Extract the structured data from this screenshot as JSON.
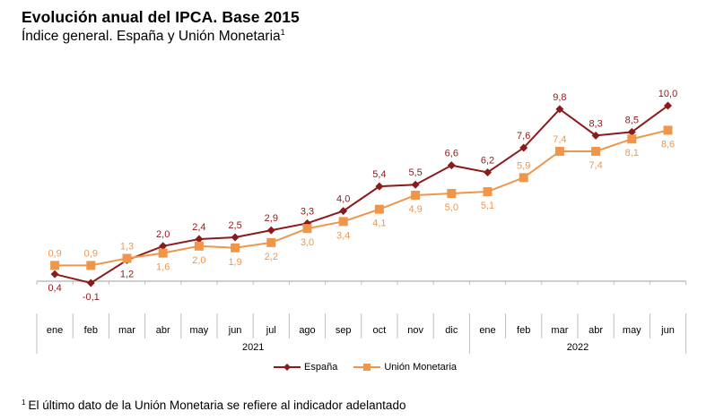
{
  "header": {
    "title": "Evolución anual del IPCA. Base 2015",
    "subtitle": "Índice general. España y Unión Monetaria",
    "subtitle_sup": "1"
  },
  "footnote": {
    "sup": "1",
    "text": "El último dato de la Unión Monetaria se refiere al indicador adelantado"
  },
  "chart_data": {
    "type": "line",
    "title": "Evolución anual del IPCA. Base 2015",
    "subtitle": "Índice general. España y Unión Monetaria",
    "xlabel": "",
    "ylabel": "",
    "categories": [
      "ene",
      "feb",
      "mar",
      "abr",
      "may",
      "jun",
      "jul",
      "ago",
      "sep",
      "oct",
      "nov",
      "dic",
      "ene",
      "feb",
      "mar",
      "abr",
      "may",
      "jun"
    ],
    "groups": [
      {
        "label": "2021",
        "start": 0,
        "end": 11
      },
      {
        "label": "2022",
        "start": 12,
        "end": 17
      }
    ],
    "ylim": [
      -0.1,
      10.0
    ],
    "grid": false,
    "legend": "bottom-center",
    "series": [
      {
        "name": "España",
        "color": "#8B1A1A",
        "marker": "diamond",
        "values": [
          0.4,
          -0.1,
          1.2,
          2.0,
          2.4,
          2.5,
          2.9,
          3.3,
          4.0,
          5.4,
          5.5,
          6.6,
          6.2,
          7.6,
          9.8,
          8.3,
          8.5,
          10.0
        ],
        "labels": [
          "0,4",
          "-0,1",
          "1,2",
          "2,0",
          "2,4",
          "2,5",
          "2,9",
          "3,3",
          "4,0",
          "5,4",
          "5,5",
          "6,6",
          "6,2",
          "7,6",
          "9,8",
          "8,3",
          "8,5",
          "10,0"
        ],
        "label_pos": [
          "below",
          "below",
          "below",
          "above",
          "above",
          "above",
          "above",
          "above",
          "above",
          "above",
          "above",
          "above",
          "above",
          "above",
          "above",
          "above",
          "above",
          "above"
        ]
      },
      {
        "name": "Unión Monetaria",
        "color": "#F0964B",
        "marker": "square",
        "values": [
          0.9,
          0.9,
          1.3,
          1.6,
          2.0,
          1.9,
          2.2,
          3.0,
          3.4,
          4.1,
          4.9,
          5.0,
          5.1,
          5.9,
          7.4,
          7.4,
          8.1,
          8.6
        ],
        "labels": [
          "0,9",
          "0,9",
          "1,3",
          "1,6",
          "2,0",
          "1,9",
          "2,2",
          "3,0",
          "3,4",
          "4,1",
          "4,9",
          "5,0",
          "5,1",
          "5,9",
          "7,4",
          "7,4",
          "8,1",
          "8,6"
        ],
        "label_pos": [
          "above",
          "above",
          "above",
          "below",
          "below",
          "below",
          "below",
          "below",
          "below",
          "below",
          "below",
          "below",
          "below",
          "above",
          "above",
          "below",
          "below",
          "below"
        ]
      }
    ]
  }
}
